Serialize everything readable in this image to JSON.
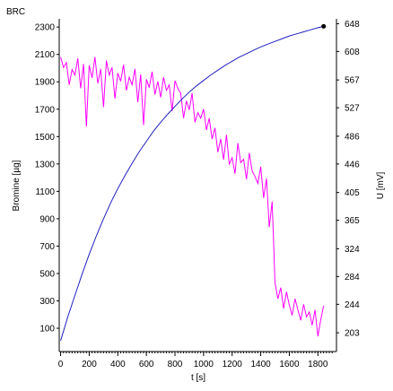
{
  "chart_data": {
    "type": "line",
    "title": "BRC",
    "xlabel": "t [s]",
    "ylabel_left": "Bromine [µg]",
    "ylabel_right": "U [mV]",
    "xlim": [
      -10,
      1930
    ],
    "ylim_left": [
      -70,
      2360
    ],
    "ylim_right": [
      176,
      655
    ],
    "x_ticks": [
      "0",
      "200",
      "400",
      "600",
      "800",
      "1000",
      "1200",
      "1400",
      "1600",
      "1800"
    ],
    "y_left_ticks": [
      "100",
      "300",
      "500",
      "700",
      "900",
      "1100",
      "1300",
      "1500",
      "1700",
      "1900",
      "2100",
      "2300"
    ],
    "y_right_ticks": [
      "203",
      "244",
      "284",
      "324",
      "365",
      "405",
      "446",
      "486",
      "527",
      "567",
      "608",
      "648"
    ],
    "colors": {
      "bromine": "#1f1fbf",
      "voltage": "#ff00ff",
      "axes": "#000000"
    },
    "grid": false,
    "series": [
      {
        "name": "Bromine [µg]",
        "axis": "left",
        "x": [
          0,
          50,
          100,
          150,
          200,
          250,
          300,
          350,
          400,
          450,
          500,
          550,
          600,
          650,
          700,
          750,
          800,
          850,
          900,
          950,
          1000,
          1050,
          1100,
          1150,
          1200,
          1250,
          1300,
          1350,
          1400,
          1450,
          1500,
          1550,
          1600,
          1650,
          1700,
          1750,
          1800,
          1840
        ],
        "values": [
          10,
          185,
          340,
          495,
          640,
          775,
          900,
          1015,
          1120,
          1215,
          1305,
          1390,
          1465,
          1540,
          1605,
          1665,
          1720,
          1775,
          1825,
          1870,
          1910,
          1950,
          1985,
          2020,
          2050,
          2080,
          2105,
          2130,
          2155,
          2175,
          2195,
          2215,
          2235,
          2250,
          2265,
          2280,
          2295,
          2305
        ]
      },
      {
        "name": "U [mV]",
        "axis": "right",
        "x": [
          0,
          20,
          40,
          60,
          80,
          100,
          120,
          140,
          160,
          180,
          200,
          220,
          240,
          260,
          280,
          300,
          320,
          340,
          360,
          380,
          400,
          420,
          440,
          460,
          480,
          500,
          520,
          540,
          560,
          580,
          600,
          620,
          640,
          660,
          680,
          700,
          720,
          740,
          760,
          780,
          800,
          820,
          840,
          860,
          880,
          900,
          920,
          940,
          960,
          980,
          1000,
          1020,
          1040,
          1060,
          1080,
          1100,
          1120,
          1140,
          1160,
          1180,
          1200,
          1220,
          1240,
          1260,
          1280,
          1300,
          1320,
          1340,
          1360,
          1380,
          1400,
          1420,
          1440,
          1460,
          1480,
          1500,
          1520,
          1540,
          1560,
          1580,
          1600,
          1620,
          1640,
          1660,
          1680,
          1700,
          1720,
          1740,
          1760,
          1780,
          1800,
          1820,
          1840
        ],
        "values": [
          600,
          585,
          592,
          560,
          582,
          574,
          598,
          555,
          590,
          500,
          588,
          570,
          600,
          562,
          583,
          528,
          595,
          574,
          585,
          540,
          577,
          565,
          589,
          552,
          571,
          560,
          583,
          535,
          575,
          502,
          568,
          556,
          579,
          546,
          565,
          542,
          571,
          552,
          560,
          522,
          566,
          555,
          548,
          512,
          537,
          524,
          548,
          506,
          520,
          512,
          525,
          495,
          512,
          482,
          498,
          463,
          482,
          452,
          488,
          446,
          455,
          432,
          476,
          448,
          453,
          424,
          462,
          436,
          428,
          418,
          442,
          397,
          425,
          355,
          392,
          275,
          252,
          268,
          238,
          262,
          243,
          228,
          252,
          236,
          221,
          244,
          226,
          233,
          214,
          236,
          198,
          222,
          242
        ]
      }
    ]
  }
}
